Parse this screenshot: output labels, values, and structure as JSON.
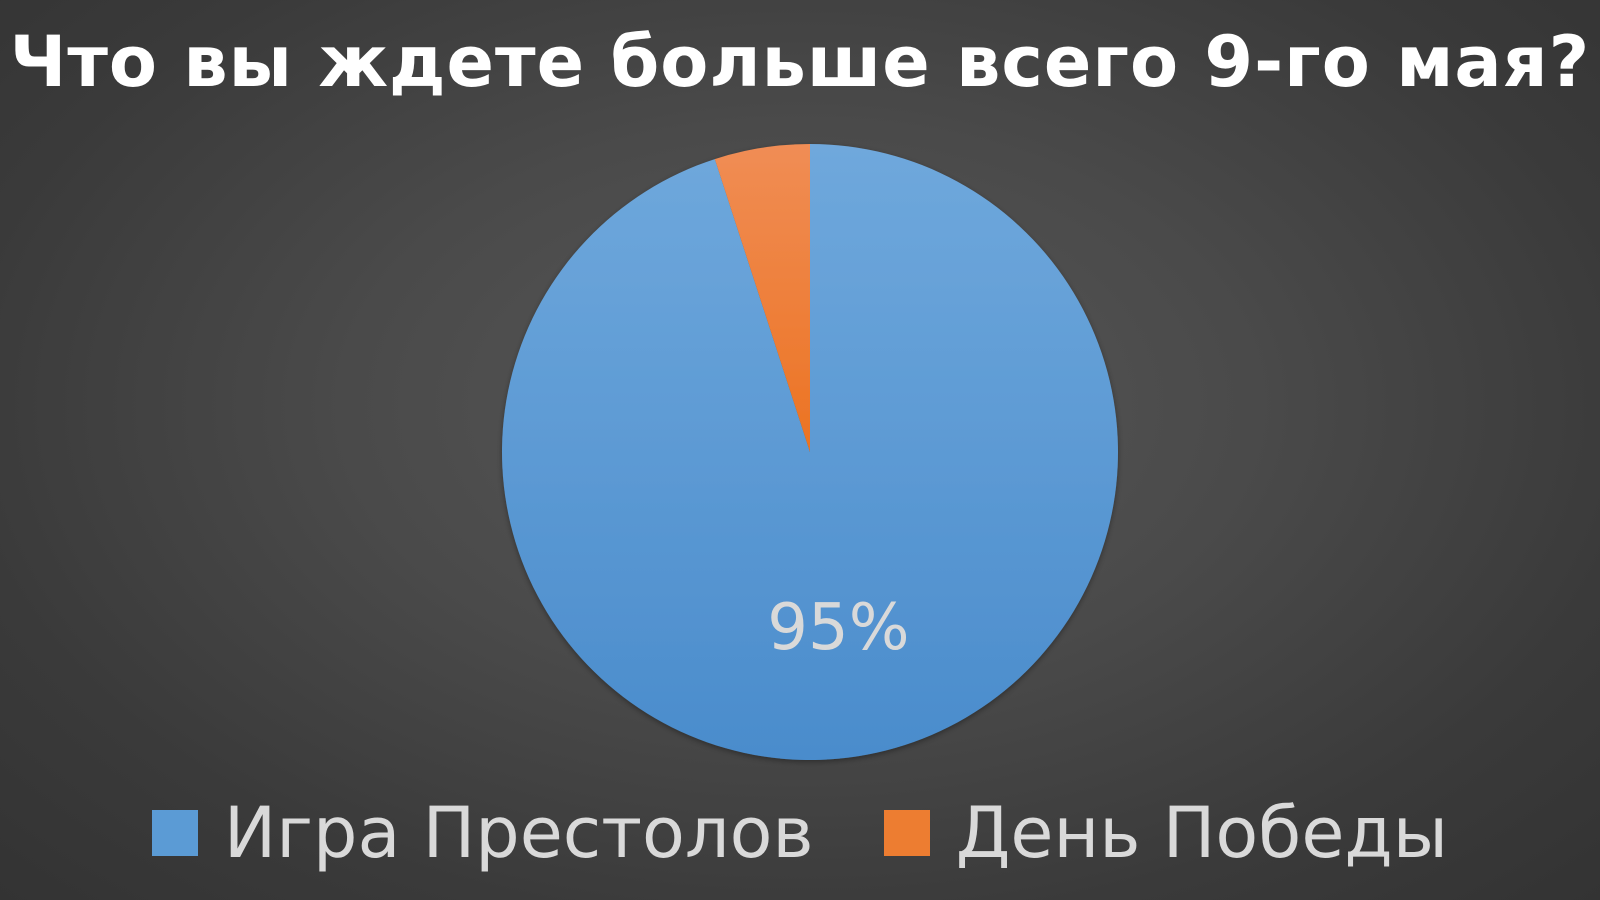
{
  "colors": {
    "background": "#3f3f3f",
    "series_blue": "#5b9bd5",
    "series_orange": "#ed7d31",
    "title_text": "#ffffff",
    "label_text": "#d9d9d9"
  },
  "chart_data": {
    "type": "pie",
    "title": "Что вы ждете больше всего 9-го мая?",
    "categories": [
      "Игра Престолов",
      "День Победы"
    ],
    "values": [
      95,
      5
    ],
    "units": "%",
    "data_labels": [
      "95%",
      ""
    ],
    "legend": "bottom",
    "slice_colors": [
      "#5b9bd5",
      "#ed7d31"
    ]
  }
}
